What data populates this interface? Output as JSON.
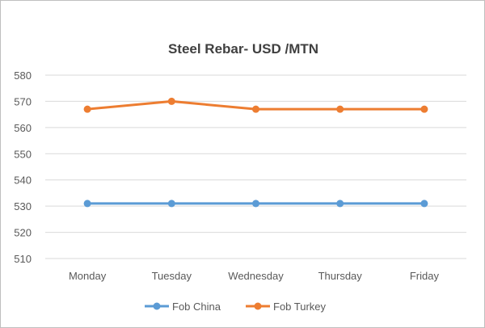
{
  "chart_data": {
    "type": "line",
    "title": "Steel Rebar- USD /MTN",
    "xlabel": "",
    "ylabel": "",
    "categories": [
      "Monday",
      "Tuesday",
      "Wednesday",
      "Thursday",
      "Friday"
    ],
    "ylim": [
      510,
      580
    ],
    "yticks": [
      510,
      520,
      530,
      540,
      550,
      560,
      570,
      580
    ],
    "grid": true,
    "legend": "bottom",
    "series": [
      {
        "name": "Fob China",
        "color": "#5b9bd5",
        "values": [
          531,
          531,
          531,
          531,
          531
        ]
      },
      {
        "name": "Fob Turkey",
        "color": "#ed7d31",
        "values": [
          567,
          570,
          567,
          567,
          567
        ]
      }
    ]
  }
}
